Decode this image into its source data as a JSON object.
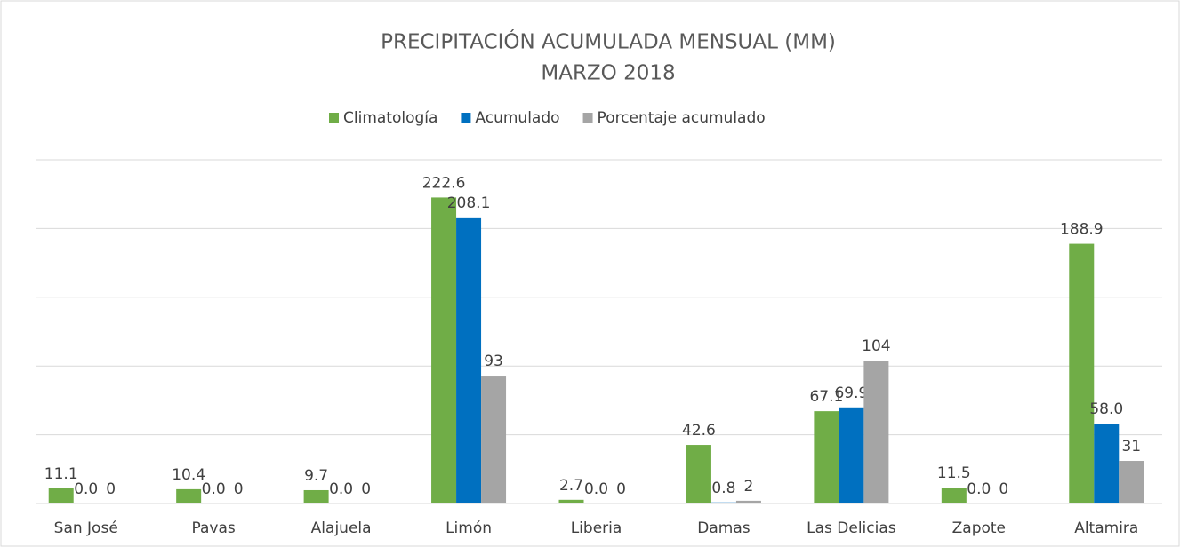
{
  "chart_data": {
    "type": "bar",
    "title": "PRECIPITACIÓN ACUMULADA MENSUAL (MM)",
    "subtitle": "MARZO 2018",
    "categories": [
      "San José",
      "Pavas",
      "Alajuela",
      "Limón",
      "Liberia",
      "Damas",
      "Las Delicias",
      "Zapote",
      "Altamira"
    ],
    "series": [
      {
        "name": "Climatología",
        "color": "#70ad47",
        "values": [
          11.1,
          10.4,
          9.7,
          222.6,
          2.7,
          42.6,
          67.1,
          11.5,
          188.9
        ],
        "value_labels": [
          "11.1",
          "10.4",
          "9.7",
          "222.6",
          "2.7",
          "42.6",
          "67.1",
          "11.5",
          "188.9"
        ]
      },
      {
        "name": "Acumulado",
        "color": "#0070c0",
        "values": [
          0,
          0,
          0,
          208.1,
          0,
          0.8,
          69.9,
          0,
          58
        ],
        "value_labels": [
          "0.0",
          "0.0",
          "0.0",
          "208.1",
          "0.0",
          "0.8",
          "69.9",
          "0.0",
          "58.0"
        ]
      },
      {
        "name": "Porcentaje acumulado",
        "color": "#a5a5a5",
        "values": [
          0,
          0,
          0,
          93,
          0,
          2,
          104,
          0,
          31
        ],
        "value_labels": [
          "0",
          "0",
          "0",
          "93",
          "0",
          "2",
          "104",
          "0",
          "31"
        ]
      }
    ],
    "ylim": [
      0,
      250
    ],
    "yticks": [
      0,
      50,
      100,
      150,
      200,
      250
    ],
    "grid": true,
    "legend": "top"
  }
}
